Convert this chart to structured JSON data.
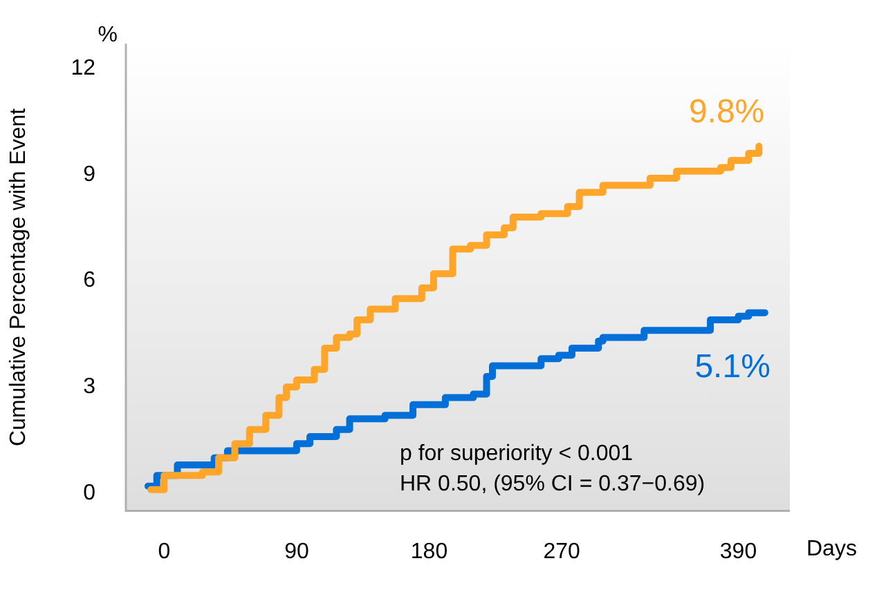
{
  "chart_data": {
    "type": "step",
    "ylabel": "Cumulative Percentage with Event",
    "xlabel": "Days",
    "annotations": [
      "%",
      "p for superiority < 0.001",
      "HR 0.50, (95% CI = 0.37−0.69)"
    ],
    "xlim": [
      -26,
      425
    ],
    "ylim": [
      -0.5,
      12.7
    ],
    "xticks": [
      0,
      90,
      180,
      270,
      390
    ],
    "yticks": [
      0,
      3,
      6,
      9,
      12
    ],
    "legend": false,
    "marker": "none",
    "line_style": "solid",
    "series": [
      {
        "color": "#ffa52a",
        "x": [
          -9,
          0,
          12,
          26,
          37,
          48,
          58,
          69,
          78,
          83,
          90,
          102,
          109,
          117,
          126,
          131,
          140,
          157,
          175,
          183,
          192,
          196,
          208,
          219,
          231,
          237,
          256,
          274,
          282,
          298,
          330,
          348,
          378,
          385,
          397,
          404
        ],
        "values": [
          0.1,
          0.5,
          0.5,
          0.6,
          1.0,
          1.4,
          1.8,
          2.2,
          2.7,
          3.0,
          3.2,
          3.5,
          4.1,
          4.4,
          4.5,
          4.9,
          5.2,
          5.5,
          5.8,
          6.2,
          6.2,
          6.9,
          7.0,
          7.3,
          7.5,
          7.8,
          7.9,
          8.1,
          8.5,
          8.7,
          8.9,
          9.1,
          9.2,
          9.4,
          9.6,
          9.8
        ],
        "value_labels": [
          null,
          null,
          null,
          null,
          null,
          null,
          null,
          null,
          null,
          null,
          null,
          null,
          null,
          null,
          null,
          null,
          null,
          null,
          null,
          null,
          null,
          null,
          null,
          null,
          null,
          null,
          null,
          null,
          null,
          null,
          null,
          null,
          null,
          null,
          null,
          "9.8%"
        ]
      },
      {
        "color": "#0070d8",
        "x": [
          -11,
          -5,
          9,
          25,
          34,
          43,
          83,
          90,
          99,
          117,
          126,
          150,
          169,
          191,
          210,
          219,
          223,
          249,
          256,
          268,
          277,
          295,
          298,
          326,
          360,
          371,
          390,
          397,
          408
        ],
        "values": [
          0.2,
          0.5,
          0.8,
          0.8,
          1.0,
          1.2,
          1.2,
          1.4,
          1.6,
          1.8,
          2.1,
          2.2,
          2.5,
          2.7,
          2.8,
          3.3,
          3.6,
          3.6,
          3.8,
          3.9,
          4.1,
          4.3,
          4.4,
          4.6,
          4.6,
          4.9,
          5.0,
          5.1,
          5.1
        ],
        "value_labels": [
          null,
          null,
          null,
          null,
          null,
          null,
          null,
          null,
          null,
          null,
          null,
          null,
          null,
          null,
          null,
          null,
          null,
          null,
          null,
          null,
          null,
          null,
          null,
          null,
          null,
          null,
          null,
          null,
          "5.1%"
        ]
      }
    ]
  }
}
